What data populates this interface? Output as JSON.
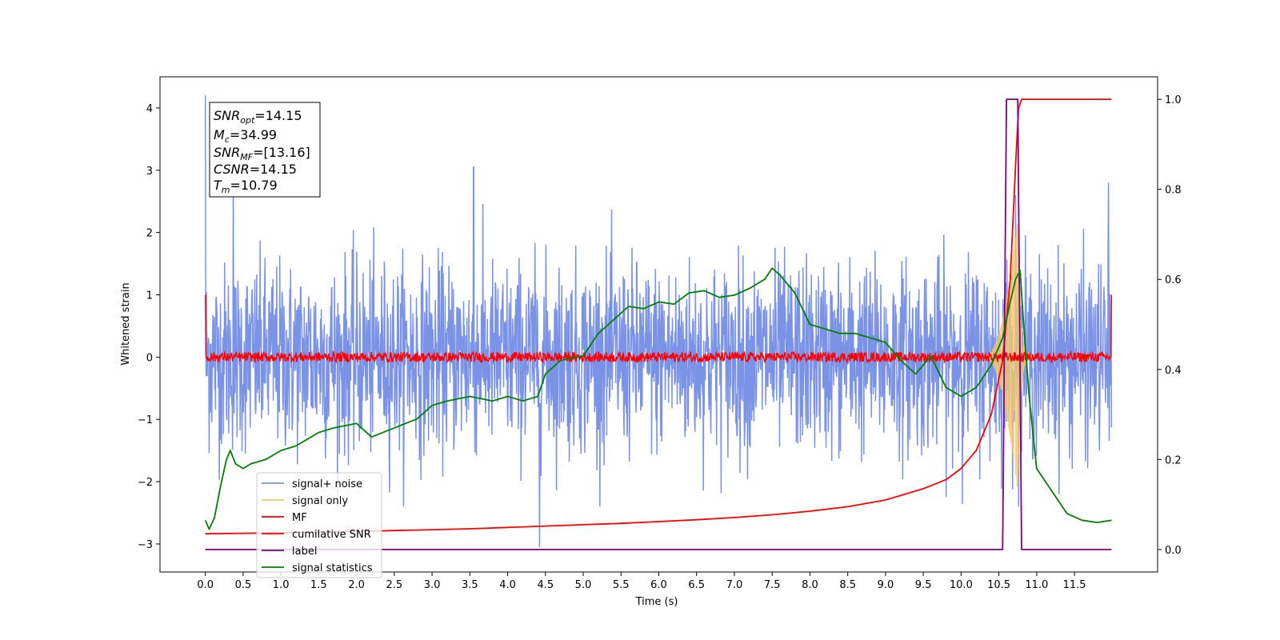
{
  "chart_data": {
    "type": "line",
    "xlabel": "Time (s)",
    "ylabel": "Whitened strain",
    "xlim": [
      -0.6,
      12.6
    ],
    "ylim_left": [
      -3.45,
      4.5
    ],
    "ylim_right": [
      -0.05,
      1.05
    ],
    "x_ticks": [
      "0.0",
      "0.5",
      "1.0",
      "1.5",
      "2.0",
      "2.5",
      "3.0",
      "3.5",
      "4.0",
      "4.5",
      "5.0",
      "5.5",
      "6.0",
      "6.5",
      "7.0",
      "7.5",
      "8.0",
      "8.5",
      "9.0",
      "9.5",
      "10.0",
      "10.5",
      "11.0",
      "11.5"
    ],
    "y_ticks_left": [
      "4",
      "3",
      "2",
      "1",
      "0",
      "−1",
      "−2",
      "−3"
    ],
    "y_ticks_right": [
      "1.0",
      "0.8",
      "0.6",
      "0.4",
      "0.2",
      "0.0"
    ],
    "info_box": {
      "snr_opt": "=14.15",
      "mc": "=34.99",
      "snr_mf": "=[13.16]",
      "csnr": "=14.15",
      "tm": "=10.79"
    },
    "legend_position": "lower-left",
    "series": [
      {
        "name": "signal+ noise",
        "color": "#7b93e6",
        "axis": "left",
        "kind": "noise",
        "amplitude_sd": 0.75,
        "range": [
          -2.4,
          3.0
        ],
        "spikes": [
          [
            0.0,
            4.2
          ],
          [
            0.37,
            3.1
          ],
          [
            3.55,
            3.05
          ],
          [
            4.42,
            -3.05
          ],
          [
            10.72,
            2.6
          ],
          [
            11.95,
            2.8
          ]
        ]
      },
      {
        "name": "signal only",
        "color": "#f5c86b",
        "axis": "left",
        "kind": "chirp",
        "start": 10.3,
        "peak": 10.75,
        "peak_amplitude": 2.3
      },
      {
        "name": "MF",
        "color": "#ff0000",
        "axis": "left",
        "kind": "noise_band",
        "level": 0.0,
        "amplitude": 0.08,
        "edge_values": [
          1.0,
          1.0
        ]
      },
      {
        "name": "cumilative SNR",
        "color": "#ff0000",
        "axis": "right",
        "x": [
          0.0,
          0.5,
          1.0,
          1.5,
          2.0,
          2.5,
          3.0,
          3.5,
          4.0,
          4.5,
          5.0,
          5.5,
          6.0,
          6.5,
          7.0,
          7.5,
          8.0,
          8.5,
          9.0,
          9.5,
          9.8,
          10.0,
          10.2,
          10.4,
          10.55,
          10.65,
          10.72,
          10.76,
          10.8,
          11.0,
          11.5,
          11.99
        ],
        "y": [
          0.035,
          0.036,
          0.037,
          0.039,
          0.04,
          0.042,
          0.044,
          0.046,
          0.049,
          0.052,
          0.055,
          0.058,
          0.062,
          0.066,
          0.071,
          0.077,
          0.085,
          0.095,
          0.11,
          0.135,
          0.155,
          0.18,
          0.22,
          0.3,
          0.42,
          0.6,
          0.85,
          0.98,
          1.0,
          1.0,
          1.0,
          1.0
        ]
      },
      {
        "name": "label",
        "color": "#800080",
        "axis": "right",
        "x": [
          0.0,
          10.55,
          10.6,
          10.75,
          10.8,
          11.99
        ],
        "y": [
          0.0,
          0.0,
          1.0,
          1.0,
          0.0,
          0.0
        ]
      },
      {
        "name": "signal statistics",
        "color": "#008000",
        "axis": "right",
        "x": [
          0.0,
          0.05,
          0.12,
          0.2,
          0.28,
          0.33,
          0.4,
          0.5,
          0.6,
          0.8,
          1.0,
          1.2,
          1.5,
          1.7,
          2.0,
          2.2,
          2.5,
          2.8,
          3.0,
          3.2,
          3.5,
          3.8,
          4.0,
          4.2,
          4.4,
          4.5,
          4.7,
          5.0,
          5.2,
          5.4,
          5.6,
          5.8,
          6.0,
          6.2,
          6.4,
          6.6,
          6.8,
          7.0,
          7.2,
          7.4,
          7.5,
          7.6,
          7.8,
          8.0,
          8.2,
          8.4,
          8.6,
          8.8,
          9.0,
          9.2,
          9.4,
          9.6,
          9.8,
          10.0,
          10.2,
          10.4,
          10.55,
          10.65,
          10.72,
          10.78,
          10.82,
          10.9,
          11.0,
          11.2,
          11.4,
          11.6,
          11.8,
          11.99
        ],
        "y": [
          0.065,
          0.045,
          0.07,
          0.14,
          0.2,
          0.22,
          0.19,
          0.18,
          0.19,
          0.2,
          0.22,
          0.23,
          0.26,
          0.27,
          0.28,
          0.25,
          0.27,
          0.29,
          0.32,
          0.33,
          0.34,
          0.33,
          0.34,
          0.33,
          0.34,
          0.39,
          0.42,
          0.43,
          0.48,
          0.51,
          0.54,
          0.535,
          0.55,
          0.545,
          0.57,
          0.575,
          0.56,
          0.565,
          0.58,
          0.6,
          0.625,
          0.61,
          0.57,
          0.5,
          0.49,
          0.48,
          0.48,
          0.47,
          0.46,
          0.42,
          0.39,
          0.43,
          0.36,
          0.34,
          0.36,
          0.41,
          0.47,
          0.55,
          0.6,
          0.62,
          0.52,
          0.34,
          0.18,
          0.13,
          0.08,
          0.065,
          0.06,
          0.065
        ]
      }
    ]
  }
}
